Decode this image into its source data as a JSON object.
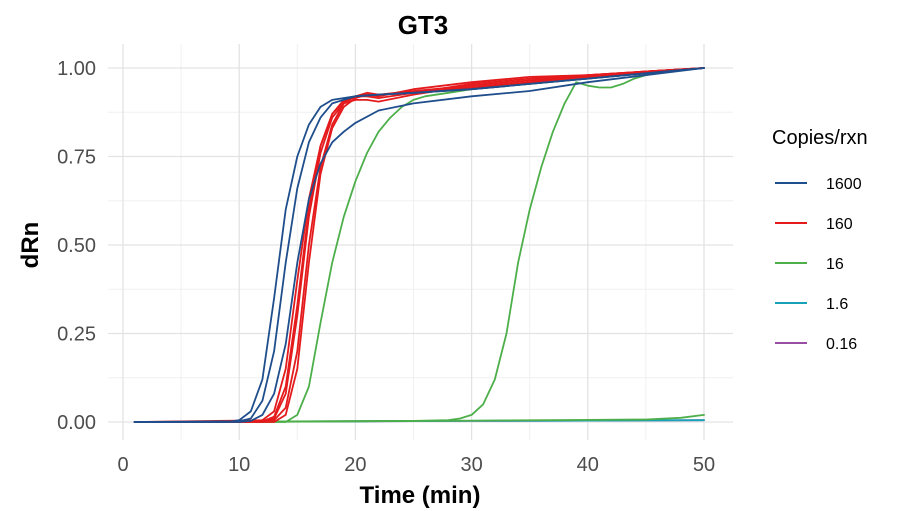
{
  "chart_data": {
    "type": "line",
    "title": "GT3",
    "xlabel": "Time (min)",
    "ylabel": "dRn",
    "xlim": [
      0,
      50
    ],
    "ylim": [
      0,
      1
    ],
    "xticks": [
      0,
      10,
      20,
      30,
      40,
      50
    ],
    "yticks": [
      0,
      0.25,
      0.5,
      0.75,
      1
    ],
    "xtick_labels": [
      "0",
      "10",
      "20",
      "30",
      "40",
      "50"
    ],
    "ytick_labels": [
      "0.00",
      "0.25",
      "0.50",
      "0.75",
      "1.00"
    ],
    "grid": true,
    "legend_title": "Copies/rxn",
    "legend_position": "right",
    "series": [
      {
        "name": "1600",
        "color": "#1F4E8C",
        "curves": [
          {
            "x": [
              1,
              9,
              10,
              11,
              12,
              13,
              14,
              15,
              16,
              17,
              18,
              20,
              22,
              25,
              30,
              35,
              40,
              45,
              50
            ],
            "y": [
              0,
              0,
              0.005,
              0.03,
              0.12,
              0.35,
              0.6,
              0.75,
              0.84,
              0.89,
              0.91,
              0.92,
              0.925,
              0.93,
              0.94,
              0.955,
              0.97,
              0.985,
              1.0
            ]
          },
          {
            "x": [
              1,
              10,
              11,
              12,
              13,
              14,
              15,
              16,
              17,
              18,
              20,
              22,
              25,
              30,
              35,
              40,
              45,
              50
            ],
            "y": [
              0,
              0.002,
              0.01,
              0.06,
              0.2,
              0.45,
              0.66,
              0.79,
              0.86,
              0.9,
              0.92,
              0.925,
              0.93,
              0.94,
              0.955,
              0.97,
              0.985,
              1.0
            ]
          },
          {
            "x": [
              1,
              10,
              11,
              12,
              13,
              14,
              15,
              16,
              17,
              18,
              19,
              20,
              22,
              25,
              30,
              35,
              40,
              45,
              50
            ],
            "y": [
              0,
              0,
              0.003,
              0.02,
              0.08,
              0.22,
              0.45,
              0.63,
              0.73,
              0.79,
              0.82,
              0.845,
              0.88,
              0.9,
              0.92,
              0.935,
              0.96,
              0.98,
              1.0
            ]
          }
        ]
      },
      {
        "name": "160",
        "color": "#E41A1C",
        "curves": [
          {
            "x": [
              1,
              11,
              12,
              13,
              14,
              15,
              16,
              17,
              18,
              19,
              20,
              21,
              22,
              25,
              30,
              35,
              40,
              45,
              50
            ],
            "y": [
              0,
              0,
              0.005,
              0.03,
              0.15,
              0.4,
              0.63,
              0.78,
              0.87,
              0.91,
              0.92,
              0.92,
              0.915,
              0.93,
              0.955,
              0.97,
              0.98,
              0.99,
              1.0
            ]
          },
          {
            "x": [
              1,
              12,
              13,
              14,
              15,
              16,
              17,
              18,
              19,
              20,
              21,
              22,
              25,
              30,
              35,
              40,
              45,
              50
            ],
            "y": [
              0,
              0,
              0.01,
              0.08,
              0.3,
              0.58,
              0.76,
              0.86,
              0.9,
              0.91,
              0.91,
              0.905,
              0.925,
              0.95,
              0.965,
              0.975,
              0.99,
              1.0
            ]
          },
          {
            "x": [
              1,
              12,
              13,
              14,
              15,
              16,
              17,
              18,
              19,
              20,
              21,
              22,
              25,
              30,
              35,
              40,
              45,
              50
            ],
            "y": [
              0,
              0.002,
              0.015,
              0.1,
              0.33,
              0.6,
              0.78,
              0.87,
              0.905,
              0.92,
              0.925,
              0.92,
              0.94,
              0.96,
              0.975,
              0.98,
              0.99,
              1.0
            ]
          },
          {
            "x": [
              1,
              13,
              14,
              15,
              16,
              17,
              18,
              19,
              20,
              21,
              22,
              25,
              30,
              35,
              40,
              45,
              50
            ],
            "y": [
              0,
              0,
              0.02,
              0.15,
              0.45,
              0.7,
              0.83,
              0.89,
              0.915,
              0.925,
              0.925,
              0.93,
              0.945,
              0.96,
              0.975,
              0.99,
              1.0
            ]
          },
          {
            "x": [
              1,
              13,
              14,
              15,
              16,
              17,
              18,
              19,
              20,
              21,
              22,
              25,
              30,
              35,
              40,
              45,
              50
            ],
            "y": [
              0,
              0.005,
              0.04,
              0.2,
              0.5,
              0.72,
              0.84,
              0.9,
              0.92,
              0.93,
              0.925,
              0.935,
              0.95,
              0.965,
              0.98,
              0.99,
              1.0
            ]
          }
        ]
      },
      {
        "name": "16",
        "color": "#4DAF4A",
        "curves": [
          {
            "x": [
              1,
              14,
              15,
              16,
              17,
              18,
              19,
              20,
              21,
              22,
              23,
              24,
              25,
              26,
              28,
              30,
              35,
              40,
              45,
              50
            ],
            "y": [
              0,
              0,
              0.02,
              0.1,
              0.28,
              0.45,
              0.58,
              0.68,
              0.76,
              0.82,
              0.86,
              0.89,
              0.91,
              0.92,
              0.93,
              0.94,
              0.955,
              0.97,
              0.985,
              1.0
            ]
          },
          {
            "x": [
              1,
              25,
              28,
              29,
              30,
              31,
              32,
              33,
              34,
              35,
              36,
              37,
              38,
              39,
              40,
              41,
              42,
              43,
              44,
              45,
              47,
              50
            ],
            "y": [
              0,
              0.003,
              0.005,
              0.01,
              0.02,
              0.05,
              0.12,
              0.25,
              0.45,
              0.6,
              0.72,
              0.82,
              0.9,
              0.96,
              0.95,
              0.945,
              0.945,
              0.955,
              0.97,
              0.98,
              0.99,
              1.0
            ]
          },
          {
            "x": [
              1,
              10,
              20,
              30,
              40,
              45,
              48,
              50
            ],
            "y": [
              0,
              0,
              0.002,
              0.004,
              0.006,
              0.007,
              0.012,
              0.02
            ]
          }
        ]
      },
      {
        "name": "1.6",
        "color": "#17A2B8",
        "curves": [
          {
            "x": [
              1,
              10,
              20,
              30,
              40,
              50
            ],
            "y": [
              0,
              0.001,
              0.002,
              0.003,
              0.004,
              0.005
            ]
          }
        ]
      },
      {
        "name": "0.16",
        "color": "#984EA3",
        "curves": [
          {
            "x": [
              1,
              10,
              20,
              30,
              40,
              50
            ],
            "y": [
              0,
              0.001,
              0.002,
              0.003,
              0.004,
              0.005
            ]
          }
        ]
      }
    ]
  }
}
